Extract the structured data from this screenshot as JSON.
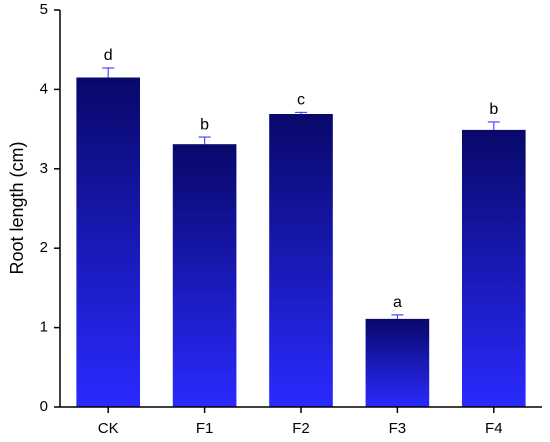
{
  "chart_data": {
    "type": "bar",
    "y_label": "Root length (cm)",
    "categories": [
      "CK",
      "F1",
      "F2",
      "F3",
      "F4"
    ],
    "values": [
      4.15,
      3.31,
      3.69,
      1.11,
      3.49
    ],
    "errors": [
      0.12,
      0.09,
      0.02,
      0.05,
      0.1
    ],
    "annotations": [
      "d",
      "b",
      "c",
      "a",
      "b"
    ],
    "gradient": [
      "#08086a",
      "#2a2aff"
    ],
    "error_color": "#4a4aff",
    "ylim": [
      0,
      5
    ],
    "yticks": [
      0,
      1,
      2,
      3,
      4,
      5
    ],
    "grid": false
  }
}
